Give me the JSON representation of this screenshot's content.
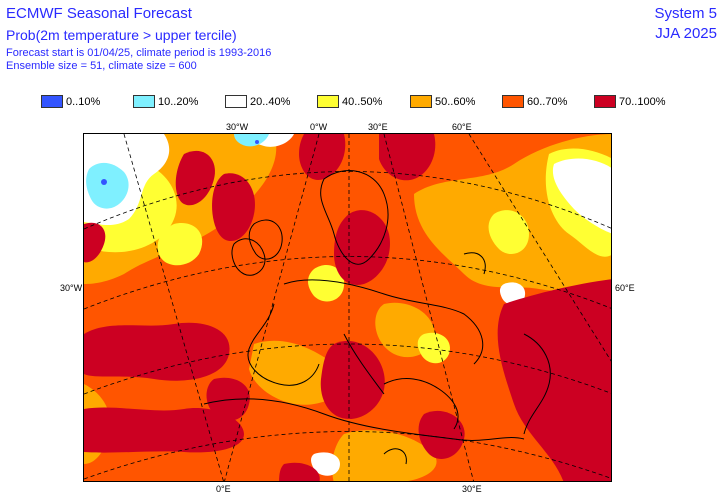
{
  "header": {
    "title": "ECMWF Seasonal Forecast",
    "subtitle": "Prob(2m temperature > upper tercile)",
    "line3": "Forecast start is 01/04/25, climate period is 1993-2016",
    "line4": "Ensemble size = 51, climate size = 600",
    "system": "System 5",
    "season": "JJA 2025"
  },
  "legend": [
    {
      "label": "0..10%",
      "color": "#3355ff"
    },
    {
      "label": "10..20%",
      "color": "#7ff0ff"
    },
    {
      "label": "20..40%",
      "color": "#ffffff"
    },
    {
      "label": "40..50%",
      "color": "#ffff33"
    },
    {
      "label": "50..60%",
      "color": "#ffaa00"
    },
    {
      "label": "60..70%",
      "color": "#ff5500"
    },
    {
      "label": "70..100%",
      "color": "#cc0022"
    }
  ],
  "axes": {
    "top": [
      "30°W",
      "0°W",
      "30°E",
      "60°E"
    ],
    "left": "30°W",
    "right": "60°E",
    "bottom": [
      "0°E",
      "30°E"
    ]
  }
}
